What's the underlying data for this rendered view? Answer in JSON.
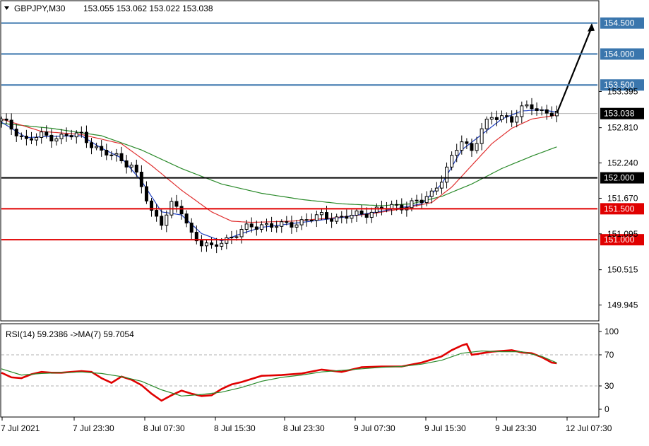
{
  "header": {
    "symbol": "GBPJPY,M30",
    "ohlc": "153.055 153.062 153.022 153.038"
  },
  "chart_data": [
    {
      "type": "candlestick",
      "name": "GBPJPY M30 price panel",
      "ylim": [
        149.7,
        154.85
      ],
      "y_ticks": [
        "154.500",
        "154.000",
        "153.500",
        "153.395",
        "153.038",
        "152.810",
        "152.240",
        "152.000",
        "151.670",
        "151.500",
        "151.095",
        "151.000",
        "150.515",
        "149.945"
      ],
      "current_price": "153.038",
      "horizontal_levels": [
        {
          "label": "154.500",
          "value": 154.5,
          "color": "#3a76ad"
        },
        {
          "label": "154.000",
          "value": 154.0,
          "color": "#3a76ad"
        },
        {
          "label": "153.500",
          "value": 153.5,
          "color": "#3a76ad"
        },
        {
          "label": "152.000",
          "value": 152.0,
          "color": "#000000"
        },
        {
          "label": "151.500",
          "value": 151.5,
          "color": "#e00000"
        },
        {
          "label": "151.000",
          "value": 151.0,
          "color": "#e00000"
        }
      ],
      "x_labels": [
        "7 Jul 2021",
        "7 Jul 23:30",
        "8 Jul 07:30",
        "8 Jul 15:30",
        "8 Jul 23:30",
        "9 Jul 07:30",
        "9 Jul 15:30",
        "9 Jul 23:30",
        "12 Jul 07:30"
      ],
      "close_path": [
        [
          0,
          152.92
        ],
        [
          3,
          152.75
        ],
        [
          5,
          152.6
        ],
        [
          8,
          152.68
        ],
        [
          12,
          152.66
        ],
        [
          16,
          152.7
        ],
        [
          18,
          152.55
        ],
        [
          20,
          152.4
        ],
        [
          23,
          152.35
        ],
        [
          26,
          152.2
        ],
        [
          28,
          151.85
        ],
        [
          30,
          151.45
        ],
        [
          32,
          151.3
        ],
        [
          34,
          151.55
        ],
        [
          36,
          151.45
        ],
        [
          38,
          151.1
        ],
        [
          40,
          150.95
        ],
        [
          42,
          150.85
        ],
        [
          44,
          150.98
        ],
        [
          46,
          151.05
        ],
        [
          48,
          151.15
        ],
        [
          52,
          151.25
        ],
        [
          56,
          151.22
        ],
        [
          60,
          151.3
        ],
        [
          64,
          151.38
        ],
        [
          68,
          151.35
        ],
        [
          72,
          151.42
        ],
        [
          76,
          151.5
        ],
        [
          80,
          151.55
        ],
        [
          84,
          151.62
        ],
        [
          86,
          151.75
        ],
        [
          88,
          152.0
        ],
        [
          90,
          152.3
        ],
        [
          92,
          152.6
        ],
        [
          94,
          152.45
        ],
        [
          96,
          152.8
        ],
        [
          98,
          152.95
        ],
        [
          100,
          153.0
        ],
        [
          102,
          152.95
        ],
        [
          104,
          153.1
        ],
        [
          106,
          153.15
        ],
        [
          108,
          153.08
        ],
        [
          110,
          153.05
        ],
        [
          111,
          153.04
        ]
      ],
      "ma_fast_path": [
        [
          0,
          152.9
        ],
        [
          5,
          152.65
        ],
        [
          10,
          152.67
        ],
        [
          16,
          152.68
        ],
        [
          20,
          152.48
        ],
        [
          24,
          152.32
        ],
        [
          28,
          151.95
        ],
        [
          32,
          151.45
        ],
        [
          36,
          151.4
        ],
        [
          40,
          151.1
        ],
        [
          44,
          150.98
        ],
        [
          48,
          151.1
        ],
        [
          52,
          151.2
        ],
        [
          60,
          151.28
        ],
        [
          68,
          151.36
        ],
        [
          76,
          151.46
        ],
        [
          84,
          151.58
        ],
        [
          88,
          151.9
        ],
        [
          92,
          152.45
        ],
        [
          96,
          152.7
        ],
        [
          100,
          152.95
        ],
        [
          104,
          153.08
        ],
        [
          108,
          153.1
        ],
        [
          111,
          153.06
        ]
      ],
      "ma_mid_path": [
        [
          0,
          152.95
        ],
        [
          8,
          152.75
        ],
        [
          16,
          152.7
        ],
        [
          24,
          152.55
        ],
        [
          30,
          152.2
        ],
        [
          36,
          151.8
        ],
        [
          42,
          151.45
        ],
        [
          46,
          151.3
        ],
        [
          50,
          151.28
        ],
        [
          58,
          151.3
        ],
        [
          66,
          151.35
        ],
        [
          74,
          151.42
        ],
        [
          80,
          151.5
        ],
        [
          86,
          151.6
        ],
        [
          90,
          151.85
        ],
        [
          94,
          152.2
        ],
        [
          98,
          152.55
        ],
        [
          102,
          152.8
        ],
        [
          106,
          152.95
        ],
        [
          110,
          153.0
        ],
        [
          111,
          153.02
        ]
      ],
      "ma_slow_path": [
        [
          0,
          152.88
        ],
        [
          10,
          152.8
        ],
        [
          20,
          152.68
        ],
        [
          28,
          152.45
        ],
        [
          36,
          152.15
        ],
        [
          44,
          151.9
        ],
        [
          52,
          151.75
        ],
        [
          60,
          151.65
        ],
        [
          68,
          151.58
        ],
        [
          76,
          151.55
        ],
        [
          82,
          151.58
        ],
        [
          88,
          151.7
        ],
        [
          94,
          151.9
        ],
        [
          100,
          152.15
        ],
        [
          106,
          152.35
        ],
        [
          111,
          152.5
        ]
      ],
      "projection_arrow": {
        "from": [
          111,
          153.04
        ],
        "to": [
          118,
          154.5
        ]
      }
    },
    {
      "type": "line",
      "name": "RSI(14) 59.2386 ->MA(7) 59.7054",
      "ylim": [
        0,
        100
      ],
      "y_ticks": [
        "100",
        "70",
        "30",
        "0"
      ],
      "levels": [
        70,
        30
      ],
      "series": [
        {
          "name": "RSI(14)",
          "color": "#e00000",
          "values": [
            [
              0,
              47
            ],
            [
              2,
              41
            ],
            [
              4,
              40
            ],
            [
              6,
              45
            ],
            [
              8,
              48
            ],
            [
              10,
              47
            ],
            [
              12,
              47
            ],
            [
              14,
              48
            ],
            [
              16,
              49
            ],
            [
              18,
              48
            ],
            [
              20,
              40
            ],
            [
              22,
              34
            ],
            [
              24,
              42
            ],
            [
              26,
              38
            ],
            [
              28,
              31
            ],
            [
              30,
              20
            ],
            [
              32,
              11
            ],
            [
              34,
              18
            ],
            [
              36,
              24
            ],
            [
              38,
              20
            ],
            [
              40,
              17
            ],
            [
              42,
              18
            ],
            [
              44,
              26
            ],
            [
              46,
              32
            ],
            [
              48,
              35
            ],
            [
              52,
              43
            ],
            [
              56,
              44
            ],
            [
              60,
              46
            ],
            [
              64,
              51
            ],
            [
              68,
              48
            ],
            [
              72,
              54
            ],
            [
              76,
              55
            ],
            [
              80,
              55
            ],
            [
              84,
              60
            ],
            [
              86,
              64
            ],
            [
              88,
              68
            ],
            [
              90,
              76
            ],
            [
              92,
              82
            ],
            [
              93,
              84
            ],
            [
              94,
              70
            ],
            [
              96,
              72
            ],
            [
              98,
              74
            ],
            [
              100,
              75
            ],
            [
              102,
              76
            ],
            [
              104,
              73
            ],
            [
              106,
              72
            ],
            [
              108,
              67
            ],
            [
              110,
              60
            ],
            [
              111,
              59.2
            ]
          ]
        },
        {
          "name": "MA(7)",
          "color": "#2a8a2a",
          "values": [
            [
              0,
              52
            ],
            [
              4,
              44
            ],
            [
              8,
              46
            ],
            [
              12,
              47
            ],
            [
              16,
              48
            ],
            [
              20,
              46
            ],
            [
              24,
              42
            ],
            [
              28,
              36
            ],
            [
              32,
              25
            ],
            [
              36,
              17
            ],
            [
              40,
              19
            ],
            [
              44,
              22
            ],
            [
              48,
              28
            ],
            [
              52,
              36
            ],
            [
              56,
              41
            ],
            [
              60,
              44
            ],
            [
              64,
              48
            ],
            [
              68,
              50
            ],
            [
              72,
              52
            ],
            [
              76,
              54
            ],
            [
              80,
              55
            ],
            [
              84,
              58
            ],
            [
              88,
              63
            ],
            [
              92,
              72
            ],
            [
              96,
              75
            ],
            [
              100,
              74
            ],
            [
              104,
              74
            ],
            [
              108,
              68
            ],
            [
              111,
              59.7
            ]
          ]
        }
      ]
    }
  ],
  "rsi_header": "RSI(14) 59.2386  ->MA(7) 59.7054",
  "colors": {
    "bull_candle": "#ffffff",
    "bear_candle": "#000000",
    "grid": "#c8c8c8",
    "current_price_badge": "#000000",
    "blue_badge": "#3a76ad",
    "red_badge": "#e00000"
  }
}
